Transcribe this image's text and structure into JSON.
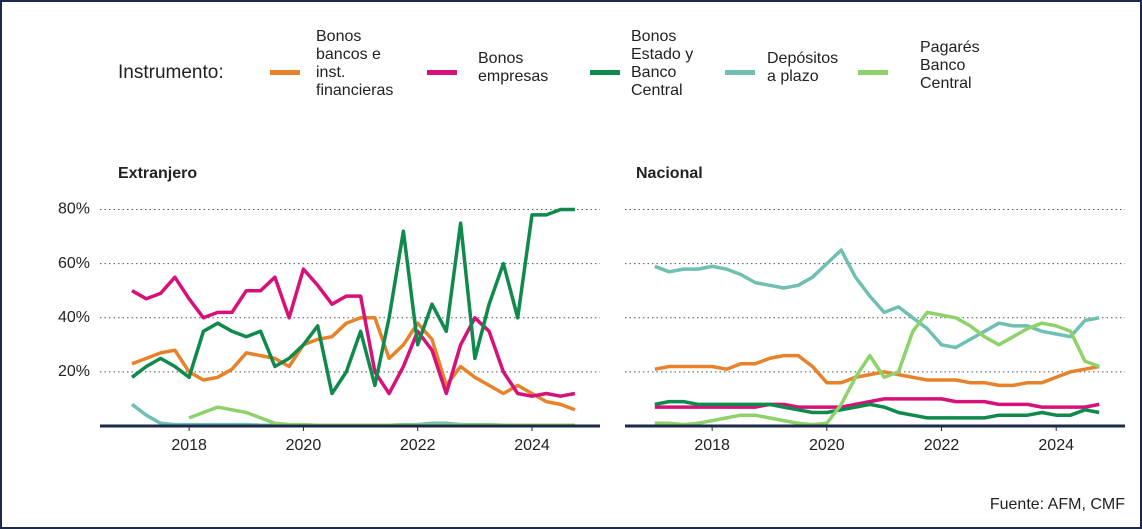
{
  "legend_title": "Instrumento:",
  "source": "Fuente: AFM, CMF",
  "chart_data": [
    {
      "type": "line",
      "title": "Extranjero",
      "x": [
        2017,
        2017.25,
        2017.5,
        2017.75,
        2018,
        2018.25,
        2018.5,
        2018.75,
        2019,
        2019.25,
        2019.5,
        2019.75,
        2020,
        2020.25,
        2020.5,
        2020.75,
        2021,
        2021.25,
        2021.5,
        2021.75,
        2022,
        2022.25,
        2022.5,
        2022.75,
        2023,
        2023.25,
        2023.5,
        2023.75,
        2024,
        2024.25,
        2024.5,
        2024.75
      ],
      "xlim": [
        2016.44,
        2025.19
      ],
      "xticks": [
        2018,
        2020,
        2022,
        2024
      ],
      "ylim": [
        0,
        85
      ],
      "yticks": [
        {
          "value": 20,
          "label": "20%"
        },
        {
          "value": 40,
          "label": "40%"
        },
        {
          "value": 60,
          "label": "60%"
        },
        {
          "value": 80,
          "label": "80%"
        }
      ],
      "grid": true,
      "series": [
        {
          "name": "Bonos bancos e inst. financieras",
          "color": "#e8822a",
          "values": [
            23,
            25,
            27,
            28,
            20,
            17,
            18,
            21,
            27,
            26,
            25,
            22,
            30,
            32,
            33,
            38,
            40,
            40,
            25,
            30,
            38,
            32,
            15,
            22,
            18,
            15,
            12,
            15,
            12,
            9,
            8,
            6
          ]
        },
        {
          "name": "Bonos empresas",
          "color": "#d6117a",
          "values": [
            50,
            47,
            49,
            55,
            47,
            40,
            42,
            42,
            50,
            50,
            55,
            40,
            58,
            52,
            45,
            48,
            48,
            20,
            12,
            22,
            35,
            28,
            12,
            30,
            40,
            35,
            20,
            12,
            11,
            12,
            11,
            12
          ]
        },
        {
          "name": "Bonos Estado y Banco Central",
          "color": "#0f8a4c",
          "values": [
            18,
            22,
            25,
            22,
            18,
            35,
            38,
            35,
            33,
            35,
            22,
            25,
            30,
            37,
            12,
            20,
            35,
            15,
            40,
            72,
            30,
            45,
            35,
            75,
            25,
            45,
            60,
            40,
            78,
            78,
            80,
            80
          ]
        },
        {
          "name": "Depósitos a plazo",
          "color": "#6fbfb2",
          "values": [
            8,
            4,
            1,
            0.5,
            0.5,
            0.5,
            0.5,
            0.5,
            0.5,
            0.3,
            0.3,
            0.3,
            0.3,
            0.3,
            0.3,
            0.3,
            0.3,
            0.3,
            0.3,
            0.5,
            0.5,
            1,
            1,
            0.5,
            0.5,
            0.5,
            0.3,
            0.3,
            0.3,
            0.2,
            0.2,
            0.2
          ]
        },
        {
          "name": "Pagarés Banco Central",
          "color": "#8fd16a",
          "values": [
            null,
            null,
            null,
            null,
            3,
            5,
            7,
            6,
            5,
            3,
            1,
            0.5,
            0.5,
            0.3,
            0.3,
            0.3,
            0.3,
            0.3,
            0.3,
            0.3,
            0.3,
            0.3,
            0.3,
            0.3,
            0.3,
            0.3,
            0.3,
            0.3,
            0.3,
            0.3,
            0.3,
            0.3
          ]
        }
      ]
    },
    {
      "type": "line",
      "title": "Nacional",
      "x": [
        2017,
        2017.25,
        2017.5,
        2017.75,
        2018,
        2018.25,
        2018.5,
        2018.75,
        2019,
        2019.25,
        2019.5,
        2019.75,
        2020,
        2020.25,
        2020.5,
        2020.75,
        2021,
        2021.25,
        2021.5,
        2021.75,
        2022,
        2022.25,
        2022.5,
        2022.75,
        2023,
        2023.25,
        2023.5,
        2023.75,
        2024,
        2024.25,
        2024.5,
        2024.75
      ],
      "xlim": [
        2016.48,
        2025.2
      ],
      "xticks": [
        2018,
        2020,
        2022,
        2024
      ],
      "ylim": [
        0,
        85
      ],
      "yticks": [
        20,
        40,
        60,
        80
      ],
      "grid": true,
      "series": [
        {
          "values": [
            21,
            22,
            22,
            22,
            22,
            21,
            23,
            23,
            25,
            26,
            26,
            22,
            16,
            16,
            18,
            19,
            20,
            19,
            18,
            17,
            17,
            17,
            16,
            16,
            15,
            15,
            16,
            16,
            18,
            20,
            21,
            22
          ]
        },
        {
          "values": [
            7,
            7,
            7,
            7,
            7,
            7,
            7,
            7,
            8,
            8,
            7,
            7,
            7,
            7,
            8,
            9,
            10,
            10,
            10,
            10,
            10,
            9,
            9,
            9,
            8,
            8,
            8,
            7,
            7,
            7,
            7,
            8
          ]
        },
        {
          "values": [
            8,
            9,
            9,
            8,
            8,
            8,
            8,
            8,
            8,
            7,
            6,
            5,
            5,
            6,
            7,
            8,
            7,
            5,
            4,
            3,
            3,
            3,
            3,
            3,
            4,
            4,
            4,
            5,
            4,
            4,
            6,
            5
          ]
        },
        {
          "values": [
            59,
            57,
            58,
            58,
            59,
            58,
            56,
            53,
            52,
            51,
            52,
            55,
            60,
            65,
            55,
            48,
            42,
            44,
            40,
            36,
            30,
            29,
            32,
            35,
            38,
            37,
            37,
            35,
            34,
            33,
            39,
            40
          ]
        },
        {
          "values": [
            1,
            1,
            0.5,
            1,
            2,
            3,
            4,
            4,
            3,
            2,
            1,
            0.5,
            1,
            8,
            18,
            26,
            18,
            20,
            35,
            42,
            41,
            40,
            37,
            33,
            30,
            33,
            36,
            38,
            37,
            35,
            24,
            22
          ]
        }
      ]
    }
  ]
}
